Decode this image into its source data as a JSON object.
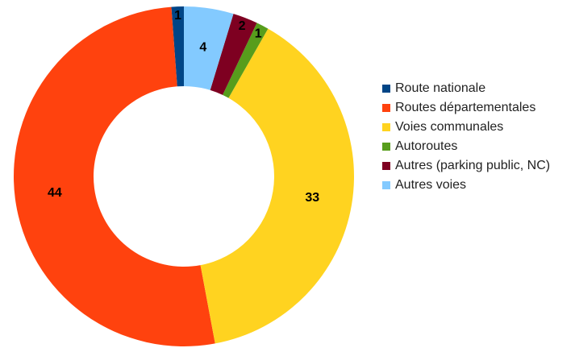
{
  "chart_data": {
    "type": "donut",
    "categories": [
      "Route nationale",
      "Routes départementales",
      "Voies communales",
      "Autoroutes",
      "Autres (parking public, NC)",
      "Autres voies"
    ],
    "values": [
      1,
      44,
      33,
      1,
      2,
      4
    ],
    "colors": [
      "#004586",
      "#ff420e",
      "#ffd320",
      "#579d1c",
      "#7e0021",
      "#83caff"
    ],
    "legend": "right"
  }
}
